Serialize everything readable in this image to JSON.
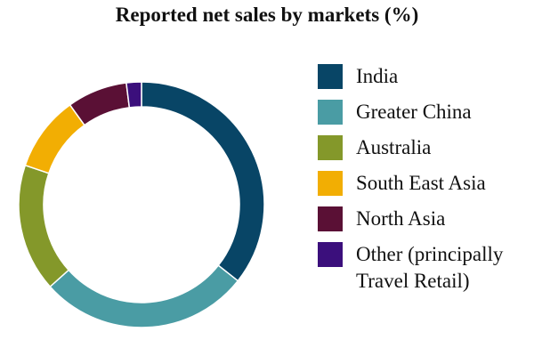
{
  "chart_data": {
    "type": "pie",
    "title": "Reported net sales by markets (%)",
    "legend_position": "right",
    "categories": [
      "India",
      "Greater China",
      "Australia",
      "South East Asia",
      "North Asia",
      "Other (principally\nTravel Retail)"
    ],
    "values": [
      36,
      28,
      17,
      10,
      8,
      2
    ],
    "colors": [
      "#084566",
      "#4a9ca4",
      "#84982a",
      "#f2ae03",
      "#5a1035",
      "#3b0f7c"
    ],
    "donut": true
  }
}
